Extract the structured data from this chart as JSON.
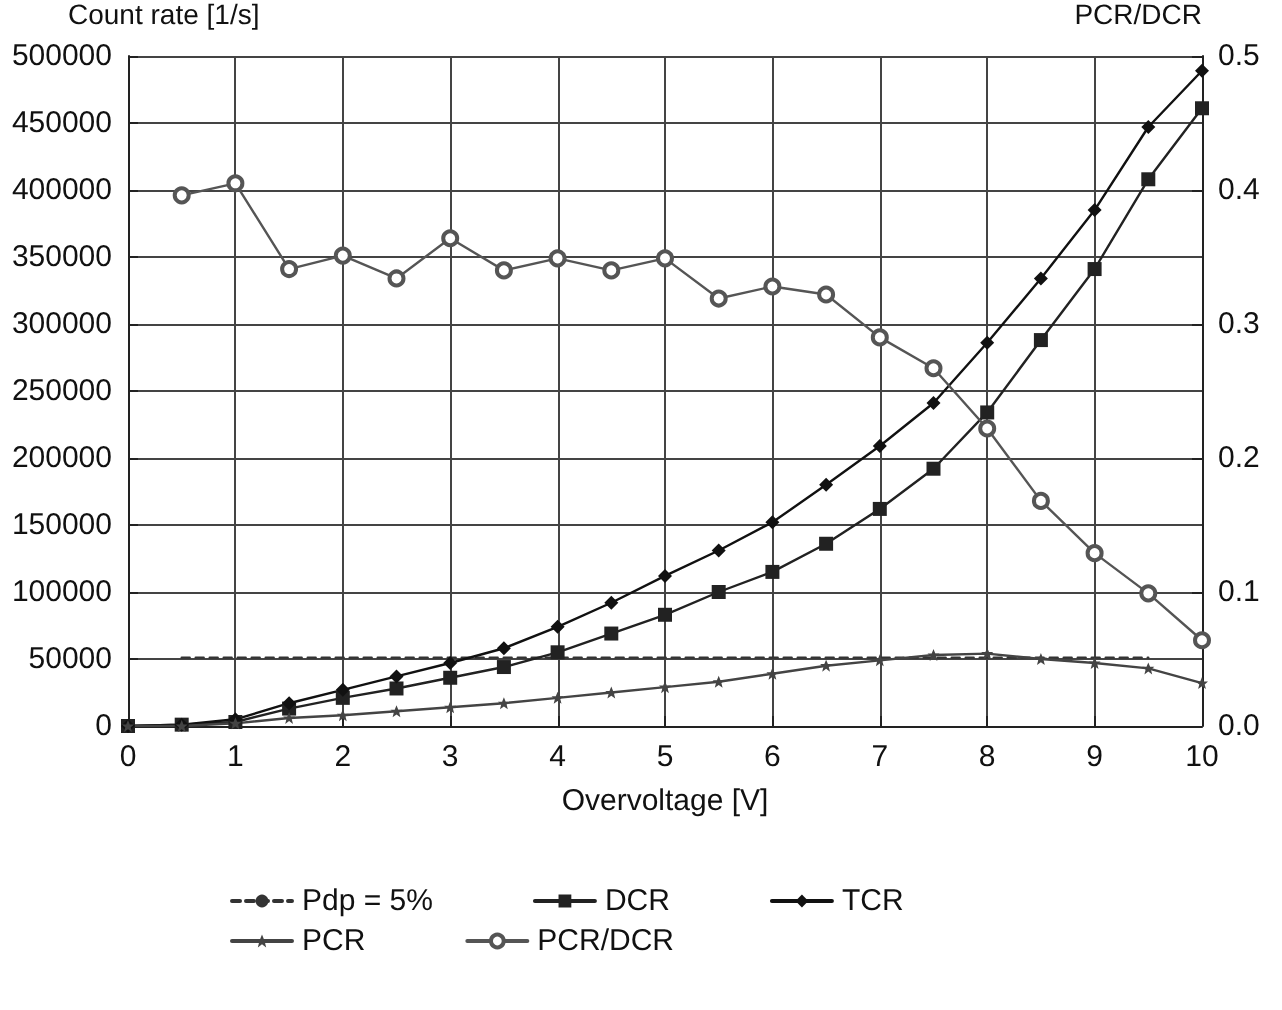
{
  "chart_data": {
    "type": "line",
    "xlabel": "Overvoltage [V]",
    "ylabel": "Count rate [1/s]",
    "y2label": "PCR/DCR",
    "x": [
      0,
      0.5,
      1,
      1.5,
      2,
      2.5,
      3,
      3.5,
      4,
      4.5,
      5,
      5.5,
      6,
      6.5,
      7,
      7.5,
      8,
      8.5,
      9,
      9.5,
      10
    ],
    "series": [
      {
        "name": "Pdp = 5%",
        "color": "#333333",
        "x": [
          0.5,
          9.5
        ],
        "values": [
          51000,
          51000
        ],
        "marker": "none",
        "line_style": "dashed"
      },
      {
        "name": "DCR",
        "color": "#222222",
        "marker": "square",
        "values": [
          0,
          1000,
          3000,
          13000,
          21000,
          28000,
          36000,
          44000,
          55000,
          69000,
          83000,
          100000,
          115000,
          136000,
          162000,
          192000,
          234000,
          288000,
          341000,
          408000,
          461000
        ]
      },
      {
        "name": "TCR",
        "color": "#111111",
        "marker": "diamond",
        "values": [
          0,
          1000,
          5000,
          17000,
          27000,
          37000,
          47000,
          58000,
          74000,
          92000,
          112000,
          131000,
          152000,
          180000,
          209000,
          241000,
          286000,
          334000,
          385000,
          447000,
          489000
        ]
      },
      {
        "name": "PCR",
        "color": "#444444",
        "marker": "star",
        "values": [
          0,
          0,
          2000,
          6000,
          8000,
          11000,
          14000,
          17000,
          21000,
          25000,
          29000,
          33000,
          39000,
          45000,
          49000,
          53000,
          54000,
          50000,
          47000,
          43000,
          32000
        ]
      },
      {
        "name": "PCR/DCR",
        "color": "#555555",
        "marker": "circle",
        "axis": "y2",
        "values": [
          null,
          0.396,
          0.405,
          0.341,
          0.351,
          0.334,
          0.364,
          0.34,
          0.349,
          0.34,
          0.349,
          0.319,
          0.328,
          0.322,
          0.29,
          0.267,
          0.222,
          0.168,
          0.129,
          0.099,
          0.064
        ]
      }
    ],
    "xlim": [
      0,
      10
    ],
    "xticks": [
      0,
      1,
      2,
      3,
      4,
      5,
      6,
      7,
      8,
      9,
      10
    ],
    "ylim": [
      0,
      500000
    ],
    "yticks": [
      0,
      50000,
      100000,
      150000,
      200000,
      250000,
      300000,
      350000,
      400000,
      450000,
      500000
    ],
    "y2lim": [
      0,
      0.5
    ],
    "y2ticks": [
      {
        "value": 0,
        "label": "0.0"
      },
      0.1,
      0.2,
      0.3,
      0.4,
      0.5
    ],
    "grid": true,
    "legend": "bottom",
    "line_style": "solid"
  }
}
